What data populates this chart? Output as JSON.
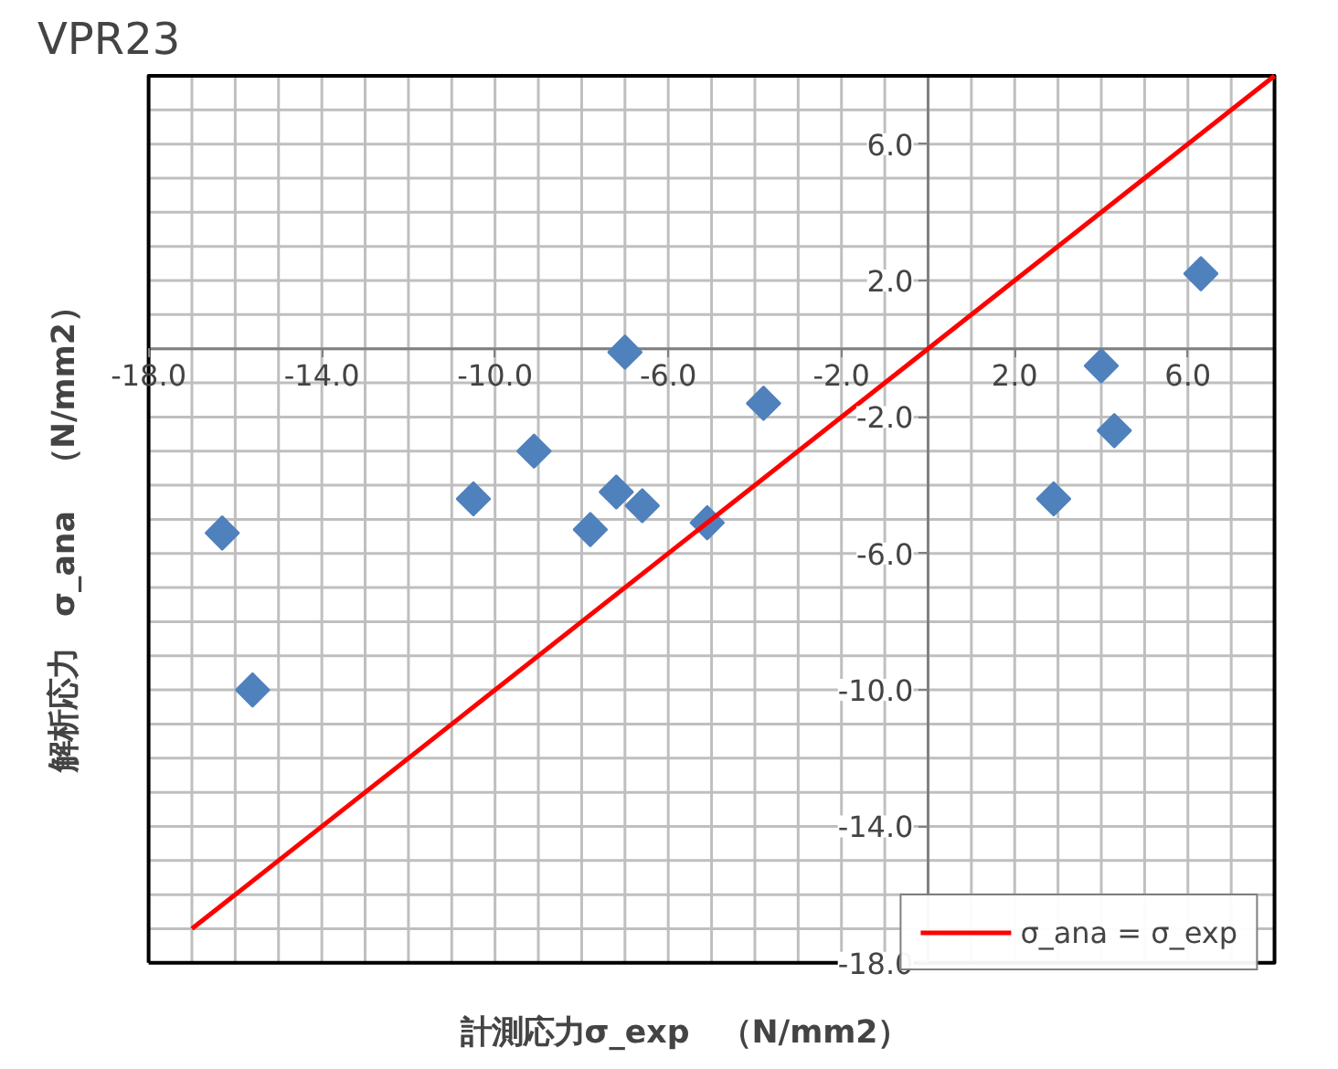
{
  "chart_data": {
    "type": "scatter",
    "title": "VPR23",
    "xlabel": "計測応力σ_exp　（N/mm2）",
    "ylabel": "解析応力　σ_ana　（N/mm2）",
    "xlim": [
      -18,
      8
    ],
    "ylim": [
      -18,
      8
    ],
    "xticks": [
      {
        "value": -18,
        "label": "-18.0"
      },
      {
        "value": -14,
        "label": "-14.0"
      },
      {
        "value": -10,
        "label": "-10.0"
      },
      {
        "value": -6,
        "label": "-6.0"
      },
      {
        "value": -2,
        "label": "-2.0"
      },
      {
        "value": 2,
        "label": "2.0"
      },
      {
        "value": 6,
        "label": "6.0"
      }
    ],
    "yticks": [
      {
        "value": -18,
        "label": "-18.0"
      },
      {
        "value": -14,
        "label": "-14.0"
      },
      {
        "value": -10,
        "label": "-10.0"
      },
      {
        "value": -6,
        "label": "-6.0"
      },
      {
        "value": -2,
        "label": "-2.0"
      },
      {
        "value": 2,
        "label": "2.0"
      },
      {
        "value": 6,
        "label": "6.0"
      }
    ],
    "grid": true,
    "legend": "bottom right",
    "series": [
      {
        "marker": "diamond",
        "color": "#4f81bd",
        "x": [
          -16.3,
          -15.6,
          -10.5,
          -9.1,
          -7.8,
          -7.2,
          -7.0,
          -6.6,
          -5.1,
          -3.8,
          2.9,
          4.0,
          4.3,
          6.3
        ],
        "values": [
          -5.4,
          -10.0,
          -4.4,
          -3.0,
          -5.3,
          -4.2,
          -0.1,
          -4.6,
          -5.1,
          -1.6,
          -4.4,
          -0.5,
          -2.4,
          2.2
        ]
      },
      {
        "type": "line",
        "name": "σ_ana = σ_exp",
        "color": "#ff0000",
        "x": [
          -17,
          8
        ],
        "values": [
          -17,
          8
        ]
      }
    ]
  }
}
